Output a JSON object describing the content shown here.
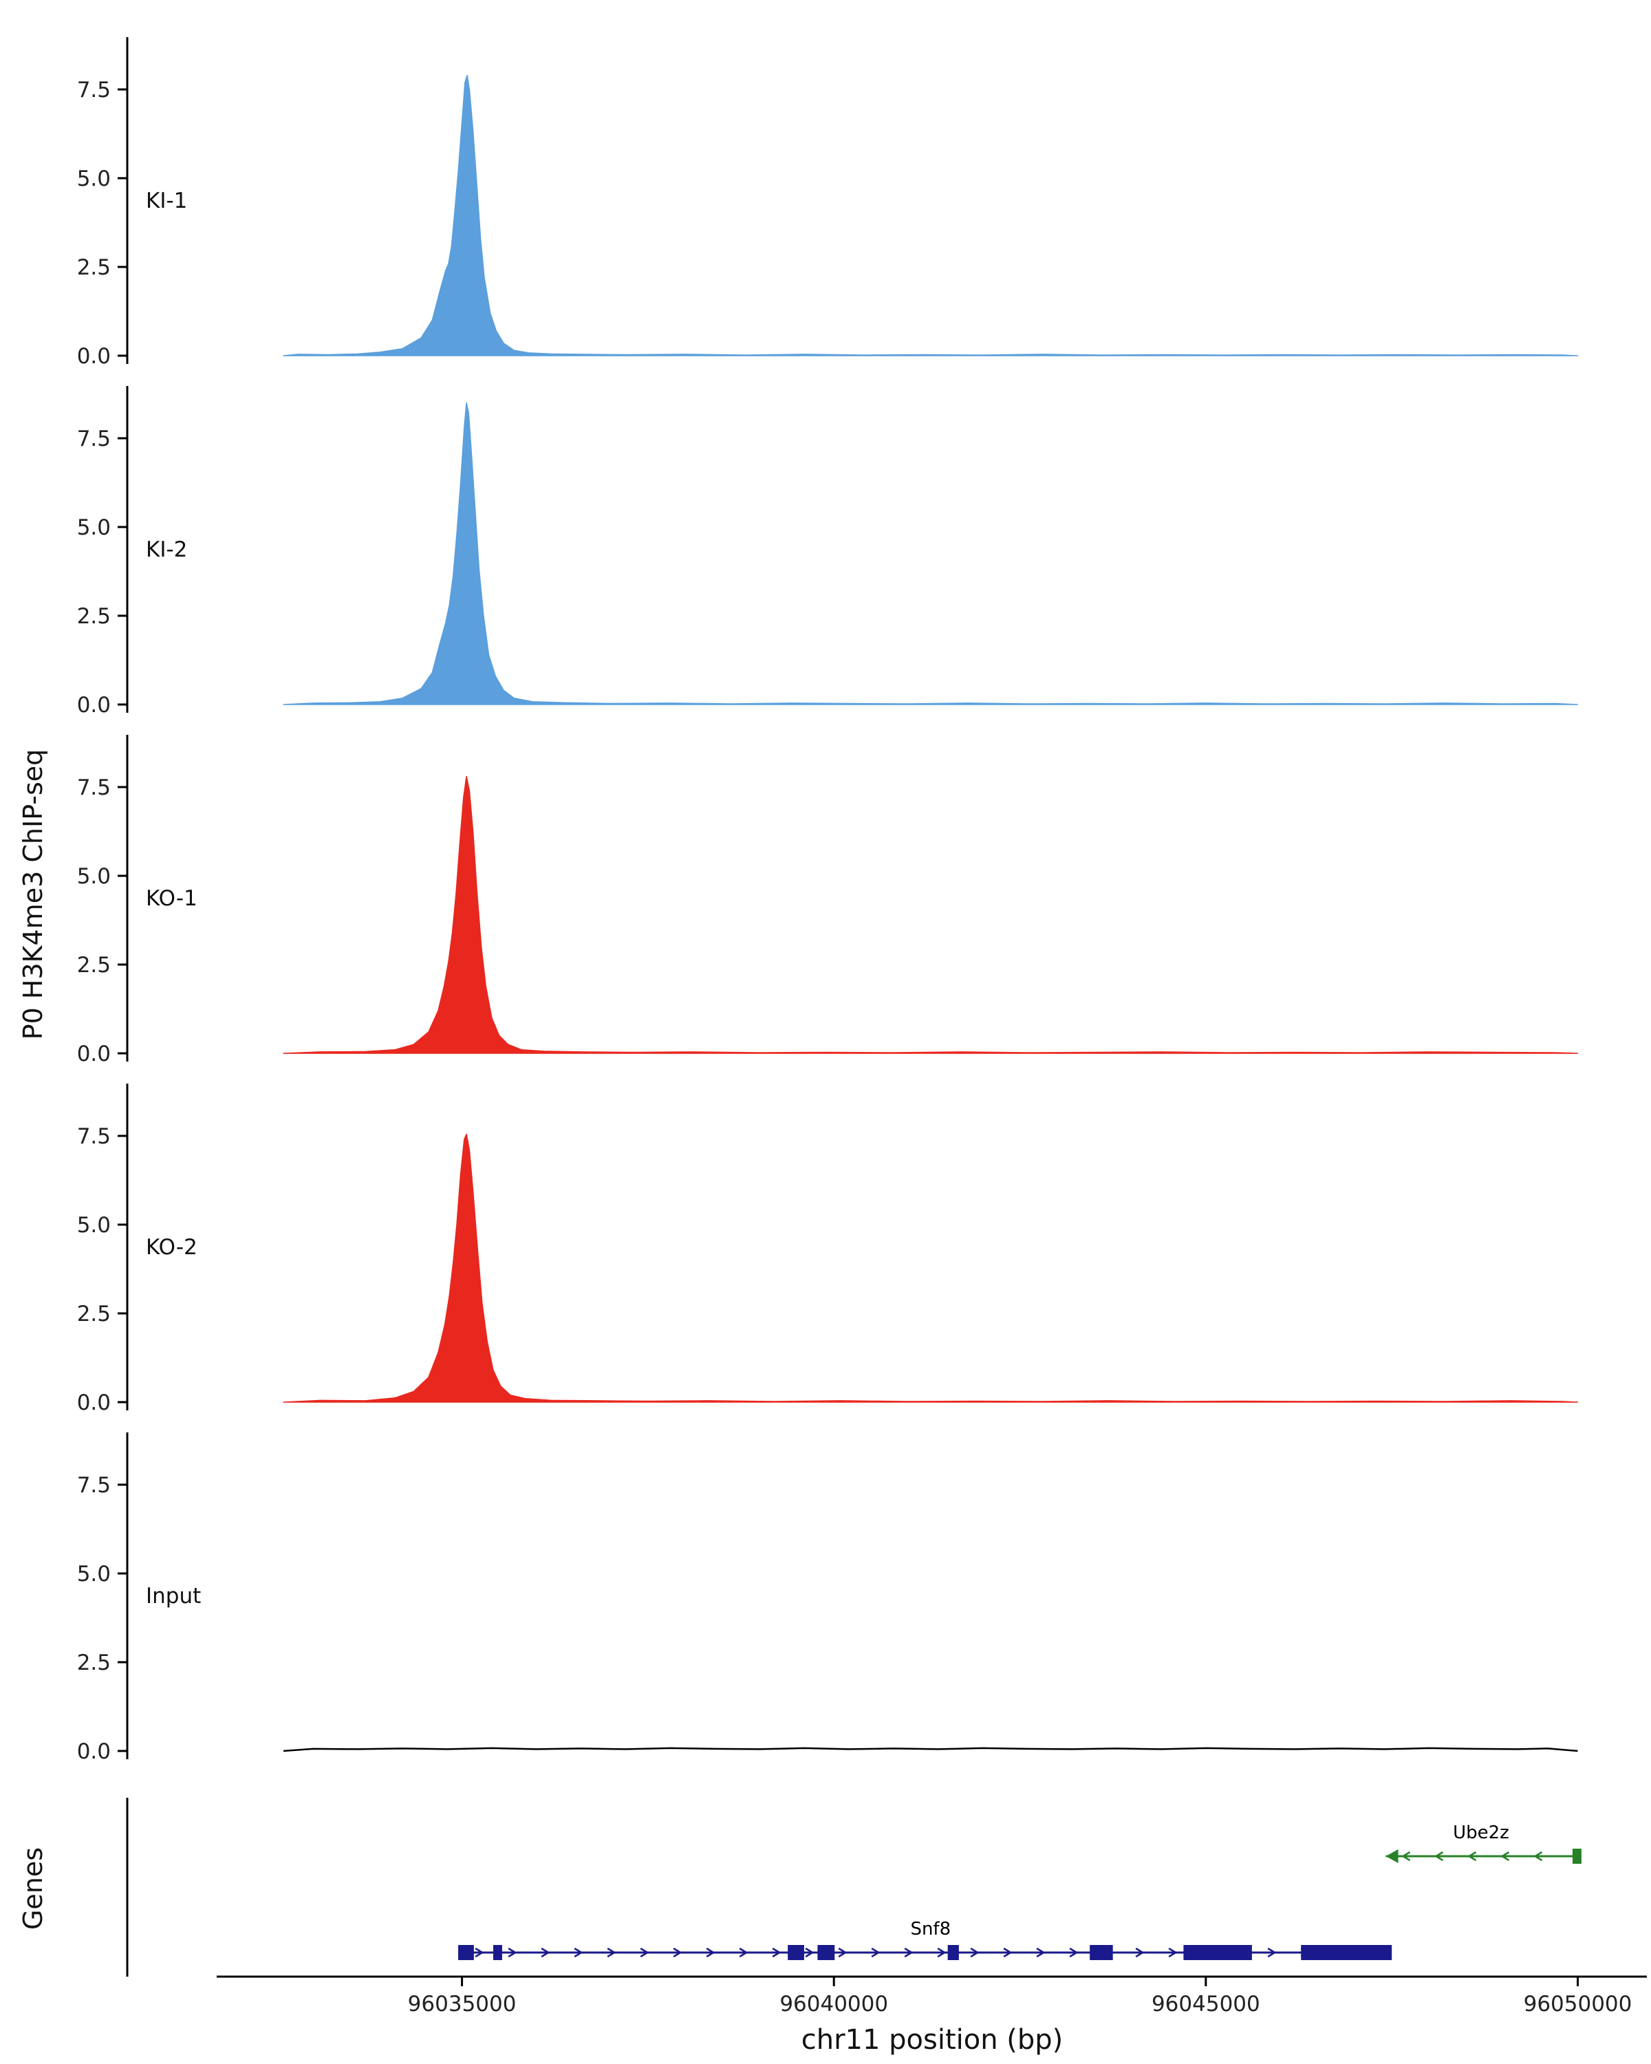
{
  "colors": {
    "axis": "#000000",
    "ki": "#5B9FDC",
    "ko": "#E8281F",
    "input": "#000000",
    "snf8": "#1A1A8C",
    "ube2z": "#278227",
    "gene_label": "#000000"
  },
  "chart_data": {
    "type": "area",
    "title": "",
    "xlabel": "chr11 position (bp)",
    "ylabel": "P0 H3K4me3 ChIP-seq",
    "genes_ylabel": "Genes",
    "x_range_bp": [
      96030500,
      96050800
    ],
    "x_ticks": [
      96035000,
      96040000,
      96045000,
      96050000
    ],
    "y_ticks": [
      0.0,
      2.5,
      5.0,
      7.5
    ],
    "y_max": 8.8,
    "grid": false,
    "legend": "none",
    "tracks": [
      {
        "label": "KI-1",
        "color_key": "ki",
        "style": "area",
        "peak_center_bp": 96035070,
        "peak_height": 7.9,
        "points": [
          [
            96032600,
            0.0
          ],
          [
            96032800,
            0.04
          ],
          [
            96033200,
            0.03
          ],
          [
            96033600,
            0.05
          ],
          [
            96033900,
            0.1
          ],
          [
            96034200,
            0.2
          ],
          [
            96034450,
            0.5
          ],
          [
            96034600,
            1.0
          ],
          [
            96034700,
            1.8
          ],
          [
            96034780,
            2.4
          ],
          [
            96034820,
            2.6
          ],
          [
            96034860,
            3.1
          ],
          [
            96034900,
            4.0
          ],
          [
            96034950,
            5.2
          ],
          [
            96035000,
            6.6
          ],
          [
            96035040,
            7.7
          ],
          [
            96035070,
            7.9
          ],
          [
            96035100,
            7.5
          ],
          [
            96035150,
            6.3
          ],
          [
            96035200,
            4.8
          ],
          [
            96035250,
            3.3
          ],
          [
            96035300,
            2.2
          ],
          [
            96035380,
            1.2
          ],
          [
            96035460,
            0.7
          ],
          [
            96035560,
            0.35
          ],
          [
            96035700,
            0.15
          ],
          [
            96035900,
            0.08
          ],
          [
            96036200,
            0.05
          ],
          [
            96036600,
            0.04
          ],
          [
            96037200,
            0.03
          ],
          [
            96038000,
            0.04
          ],
          [
            96038800,
            0.02
          ],
          [
            96039600,
            0.04
          ],
          [
            96040400,
            0.02
          ],
          [
            96041200,
            0.03
          ],
          [
            96042000,
            0.02
          ],
          [
            96042800,
            0.04
          ],
          [
            96043600,
            0.02
          ],
          [
            96044400,
            0.03
          ],
          [
            96045200,
            0.02
          ],
          [
            96046000,
            0.03
          ],
          [
            96046800,
            0.02
          ],
          [
            96047600,
            0.03
          ],
          [
            96048400,
            0.02
          ],
          [
            96049200,
            0.03
          ],
          [
            96049800,
            0.02
          ],
          [
            96050000,
            0.0
          ]
        ]
      },
      {
        "label": "KI-2",
        "color_key": "ki",
        "style": "area",
        "peak_center_bp": 96035060,
        "peak_height": 8.5,
        "points": [
          [
            96032600,
            0.0
          ],
          [
            96033000,
            0.04
          ],
          [
            96033500,
            0.05
          ],
          [
            96033900,
            0.08
          ],
          [
            96034200,
            0.18
          ],
          [
            96034450,
            0.45
          ],
          [
            96034600,
            0.9
          ],
          [
            96034700,
            1.7
          ],
          [
            96034780,
            2.3
          ],
          [
            96034830,
            2.8
          ],
          [
            96034880,
            3.6
          ],
          [
            96034930,
            4.8
          ],
          [
            96034980,
            6.2
          ],
          [
            96035030,
            7.8
          ],
          [
            96035060,
            8.5
          ],
          [
            96035090,
            8.2
          ],
          [
            96035130,
            7.0
          ],
          [
            96035180,
            5.4
          ],
          [
            96035230,
            3.8
          ],
          [
            96035290,
            2.5
          ],
          [
            96035360,
            1.4
          ],
          [
            96035450,
            0.8
          ],
          [
            96035560,
            0.4
          ],
          [
            96035700,
            0.18
          ],
          [
            96035950,
            0.08
          ],
          [
            96036400,
            0.05
          ],
          [
            96037000,
            0.03
          ],
          [
            96037800,
            0.04
          ],
          [
            96038600,
            0.02
          ],
          [
            96039400,
            0.04
          ],
          [
            96040200,
            0.03
          ],
          [
            96041000,
            0.02
          ],
          [
            96041800,
            0.04
          ],
          [
            96042600,
            0.02
          ],
          [
            96043400,
            0.03
          ],
          [
            96044200,
            0.02
          ],
          [
            96045000,
            0.04
          ],
          [
            96045800,
            0.02
          ],
          [
            96046600,
            0.03
          ],
          [
            96047400,
            0.02
          ],
          [
            96048200,
            0.04
          ],
          [
            96049000,
            0.02
          ],
          [
            96049700,
            0.03
          ],
          [
            96050000,
            0.0
          ]
        ]
      },
      {
        "label": "KO-1",
        "color_key": "ko",
        "style": "area",
        "peak_center_bp": 96035060,
        "peak_height": 7.8,
        "points": [
          [
            96032600,
            0.0
          ],
          [
            96033100,
            0.04
          ],
          [
            96033700,
            0.05
          ],
          [
            96034100,
            0.1
          ],
          [
            96034350,
            0.25
          ],
          [
            96034550,
            0.6
          ],
          [
            96034680,
            1.2
          ],
          [
            96034760,
            1.9
          ],
          [
            96034820,
            2.6
          ],
          [
            96034870,
            3.4
          ],
          [
            96034920,
            4.5
          ],
          [
            96034970,
            5.9
          ],
          [
            96035020,
            7.2
          ],
          [
            96035060,
            7.8
          ],
          [
            96035100,
            7.4
          ],
          [
            96035150,
            6.2
          ],
          [
            96035200,
            4.6
          ],
          [
            96035260,
            3.0
          ],
          [
            96035320,
            1.9
          ],
          [
            96035400,
            1.0
          ],
          [
            96035500,
            0.5
          ],
          [
            96035620,
            0.25
          ],
          [
            96035800,
            0.1
          ],
          [
            96036100,
            0.06
          ],
          [
            96036600,
            0.04
          ],
          [
            96037300,
            0.03
          ],
          [
            96038100,
            0.04
          ],
          [
            96039000,
            0.02
          ],
          [
            96039900,
            0.03
          ],
          [
            96040800,
            0.02
          ],
          [
            96041700,
            0.04
          ],
          [
            96042600,
            0.02
          ],
          [
            96043500,
            0.03
          ],
          [
            96044400,
            0.04
          ],
          [
            96045300,
            0.02
          ],
          [
            96046200,
            0.03
          ],
          [
            96047100,
            0.02
          ],
          [
            96048000,
            0.04
          ],
          [
            96048900,
            0.03
          ],
          [
            96049700,
            0.02
          ],
          [
            96050000,
            0.0
          ]
        ]
      },
      {
        "label": "KO-2",
        "color_key": "ko",
        "style": "area",
        "peak_center_bp": 96035060,
        "peak_height": 7.55,
        "points": [
          [
            96032600,
            0.0
          ],
          [
            96033100,
            0.05
          ],
          [
            96033700,
            0.04
          ],
          [
            96034100,
            0.12
          ],
          [
            96034350,
            0.3
          ],
          [
            96034550,
            0.7
          ],
          [
            96034680,
            1.4
          ],
          [
            96034770,
            2.2
          ],
          [
            96034830,
            3.0
          ],
          [
            96034880,
            3.9
          ],
          [
            96034930,
            5.0
          ],
          [
            96034980,
            6.4
          ],
          [
            96035030,
            7.4
          ],
          [
            96035060,
            7.55
          ],
          [
            96035100,
            7.1
          ],
          [
            96035150,
            5.9
          ],
          [
            96035210,
            4.3
          ],
          [
            96035270,
            2.8
          ],
          [
            96035340,
            1.7
          ],
          [
            96035420,
            0.9
          ],
          [
            96035520,
            0.45
          ],
          [
            96035650,
            0.2
          ],
          [
            96035850,
            0.1
          ],
          [
            96036200,
            0.05
          ],
          [
            96036800,
            0.04
          ],
          [
            96037500,
            0.03
          ],
          [
            96038300,
            0.04
          ],
          [
            96039200,
            0.02
          ],
          [
            96040100,
            0.04
          ],
          [
            96041000,
            0.02
          ],
          [
            96041900,
            0.03
          ],
          [
            96042800,
            0.02
          ],
          [
            96043700,
            0.04
          ],
          [
            96044600,
            0.02
          ],
          [
            96045500,
            0.03
          ],
          [
            96046400,
            0.02
          ],
          [
            96047300,
            0.03
          ],
          [
            96048200,
            0.02
          ],
          [
            96049100,
            0.04
          ],
          [
            96049800,
            0.02
          ],
          [
            96050000,
            0.0
          ]
        ]
      },
      {
        "label": "Input",
        "color_key": "input",
        "style": "line",
        "peak_center_bp": null,
        "peak_height": 0.08,
        "points": [
          [
            96032600,
            0.0
          ],
          [
            96033000,
            0.06
          ],
          [
            96033600,
            0.05
          ],
          [
            96034200,
            0.07
          ],
          [
            96034800,
            0.05
          ],
          [
            96035400,
            0.08
          ],
          [
            96036000,
            0.05
          ],
          [
            96036600,
            0.07
          ],
          [
            96037200,
            0.05
          ],
          [
            96037800,
            0.08
          ],
          [
            96038400,
            0.06
          ],
          [
            96039000,
            0.05
          ],
          [
            96039600,
            0.08
          ],
          [
            96040200,
            0.05
          ],
          [
            96040800,
            0.07
          ],
          [
            96041400,
            0.05
          ],
          [
            96042000,
            0.08
          ],
          [
            96042600,
            0.06
          ],
          [
            96043200,
            0.05
          ],
          [
            96043800,
            0.07
          ],
          [
            96044400,
            0.05
          ],
          [
            96045000,
            0.08
          ],
          [
            96045600,
            0.06
          ],
          [
            96046200,
            0.05
          ],
          [
            96046800,
            0.07
          ],
          [
            96047400,
            0.05
          ],
          [
            96048000,
            0.08
          ],
          [
            96048600,
            0.06
          ],
          [
            96049200,
            0.05
          ],
          [
            96049600,
            0.07
          ],
          [
            96050000,
            0.0
          ]
        ]
      }
    ],
    "genes": [
      {
        "name": "Ube2z",
        "strand": "-",
        "color_key": "ube2z",
        "start": 96047420,
        "end": 96050050,
        "row_y": 85,
        "label_bp": 96048700,
        "exons": [
          [
            96049930,
            96050050
          ]
        ]
      },
      {
        "name": "Snf8",
        "strand": "+",
        "color_key": "snf8",
        "start": 96034950,
        "end": 96047500,
        "row_y": 225,
        "label_bp": 96041300,
        "exons": [
          [
            96034950,
            96035160
          ],
          [
            96035420,
            96035540
          ],
          [
            96039380,
            96039600
          ],
          [
            96039780,
            96040010
          ],
          [
            96041530,
            96041680
          ],
          [
            96043440,
            96043750
          ],
          [
            96044700,
            96045620
          ],
          [
            96046280,
            96047500
          ]
        ]
      }
    ]
  }
}
